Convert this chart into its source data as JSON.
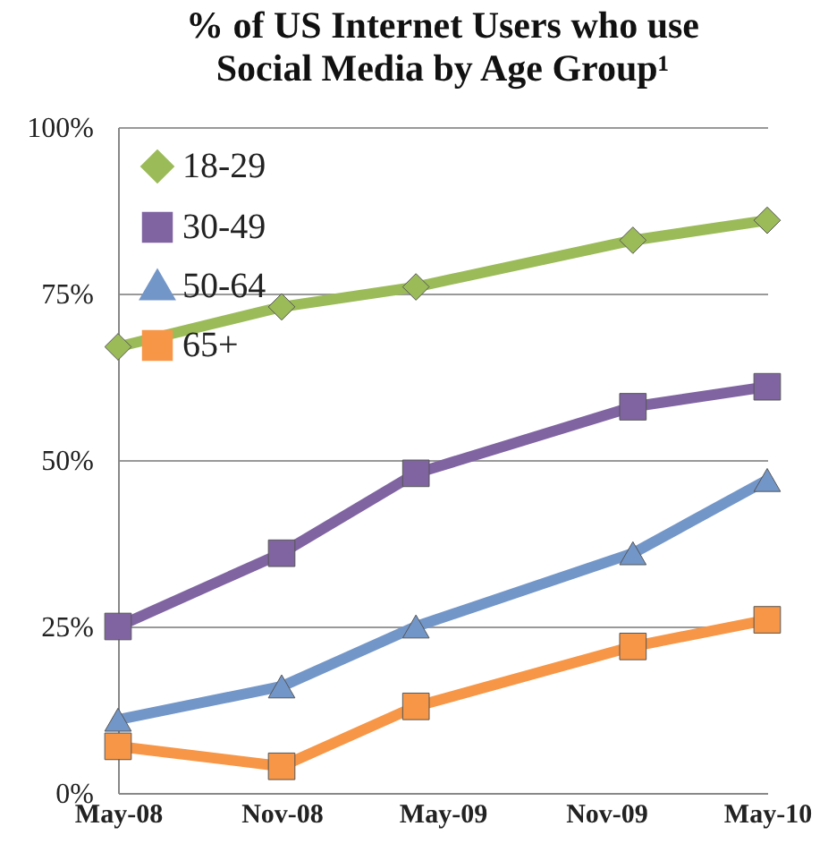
{
  "chart_data": {
    "type": "line",
    "title": "% of US Internet Users who use Social Media by Age Group¹",
    "x": [
      "2008-05",
      "2008-11",
      "2009-04",
      "2009-12",
      "2010-05"
    ],
    "xlim": [
      "2008-05",
      "2010-05"
    ],
    "xticks": [
      {
        "value": "2008-05",
        "label": "May-08"
      },
      {
        "value": "2008-11",
        "label": "Nov-08"
      },
      {
        "value": "2009-05",
        "label": "May-09"
      },
      {
        "value": "2009-11",
        "label": "Nov-09"
      },
      {
        "value": "2010-05",
        "label": "May-10"
      }
    ],
    "ylim": [
      0,
      100
    ],
    "yticks": [
      {
        "value": 0,
        "label": "0%"
      },
      {
        "value": 25,
        "label": "25%"
      },
      {
        "value": 50,
        "label": "50%"
      },
      {
        "value": 75,
        "label": "75%"
      },
      {
        "value": 100,
        "label": "100%"
      }
    ],
    "grid": "y",
    "legend": "top left",
    "line_style": "solid",
    "series": [
      {
        "name": "18-29",
        "color": "#9bbb59",
        "marker": "diamond",
        "values": [
          67,
          73,
          76,
          83,
          86
        ]
      },
      {
        "name": "30-49",
        "color": "#8064a2",
        "marker": "square",
        "values": [
          25,
          36,
          48,
          58,
          61
        ]
      },
      {
        "name": "50-64",
        "color": "#7396c8",
        "marker": "triangle",
        "values": [
          11,
          16,
          25,
          36,
          47
        ]
      },
      {
        "name": "65+",
        "color": "#f79646",
        "marker": "square",
        "values": [
          7,
          4,
          13,
          22,
          26
        ]
      }
    ]
  }
}
